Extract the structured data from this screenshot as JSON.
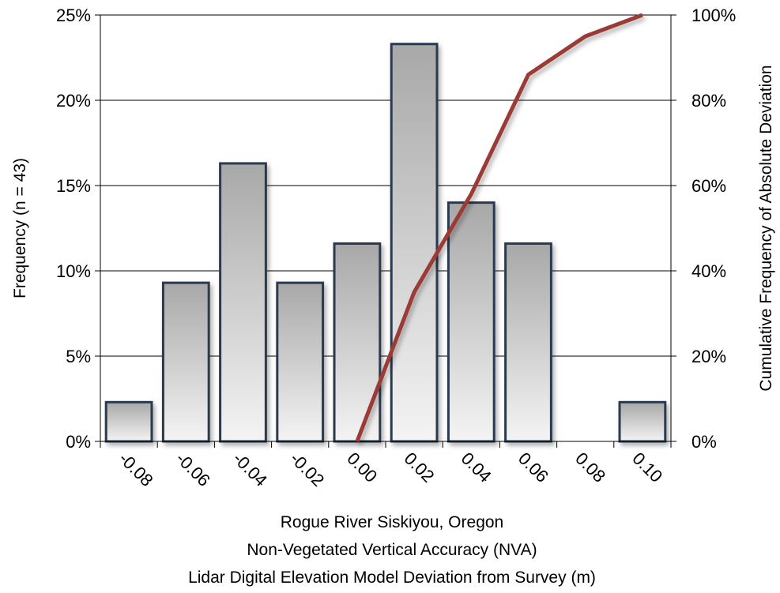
{
  "chart_data": {
    "type": "bar",
    "categories": [
      "-0.08",
      "-0.06",
      "-0.04",
      "-0.02",
      "0.00",
      "0.02",
      "0.04",
      "0.06",
      "0.08",
      "0.10"
    ],
    "series": [
      {
        "type": "bar",
        "axis": "left",
        "values": [
          2.3,
          9.3,
          16.3,
          9.3,
          11.6,
          23.3,
          14.0,
          11.6,
          0,
          2.3
        ]
      },
      {
        "type": "line",
        "axis": "right",
        "x": [
          "0.00",
          "0.02",
          "0.04",
          "0.06",
          "0.08",
          "0.10"
        ],
        "values": [
          0,
          35,
          58,
          86,
          95,
          100
        ]
      }
    ],
    "xlabel_lines": [
      "Rogue River Siskiyou, Oregon",
      "Non-Vegetated Vertical Accuracy (NVA)",
      "Lidar Digital Elevation Model Deviation from Survey (m)"
    ],
    "ylabel": "Frequency (n = 43)",
    "y2label": "Cumulative Frequency of Absolute Deviation",
    "ylim": [
      0,
      25
    ],
    "y2lim": [
      0,
      100
    ],
    "yticks": [
      "0%",
      "5%",
      "10%",
      "15%",
      "20%",
      "25%"
    ],
    "y2ticks": [
      "0%",
      "20%",
      "40%",
      "60%",
      "80%",
      "100%"
    ],
    "grid": true,
    "legend": "none",
    "colors": {
      "bar_fill_top": "#a8a8a8",
      "bar_fill_bottom": "#f4f4f4",
      "bar_stroke": "#2b3a4f",
      "line": "#9b3a36"
    }
  }
}
